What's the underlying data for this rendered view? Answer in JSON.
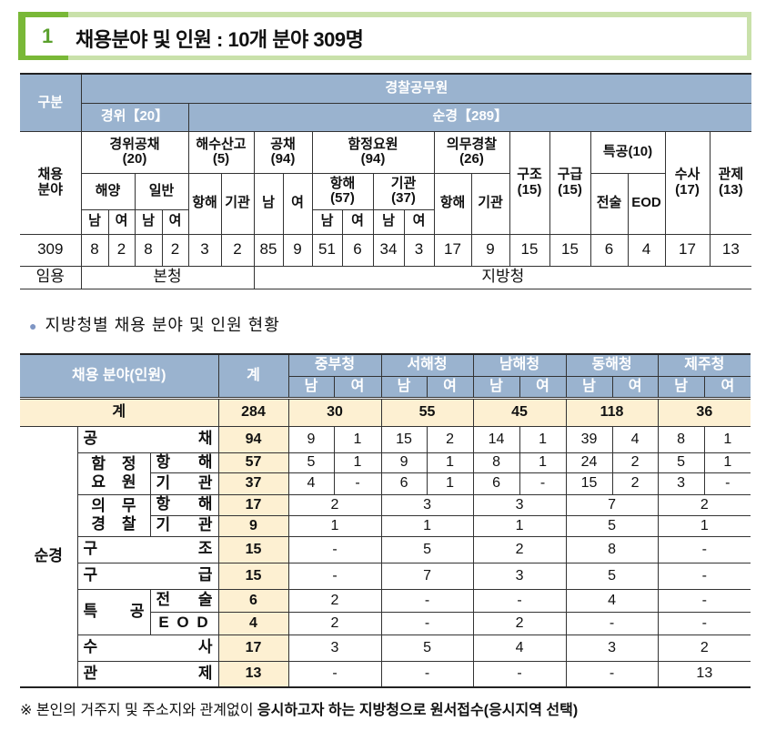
{
  "title": {
    "number": "1",
    "text": "채용분야 및 인원 : 10개 분야 309명"
  },
  "table1": {
    "gubun": "구분",
    "police": "경찰공무원",
    "gyeongwi": "경위【20】",
    "sungyeong": "순경【289】",
    "field_label": "채용\n분야",
    "groups": {
      "gyeongwi_gongchae": "경위공채\n(20)",
      "haesu": "해수산고\n(5)",
      "gongchae": "공채\n(94)",
      "hamjeong": "함정요원\n(94)",
      "uimu": "의무경찰\n(26)",
      "gujo": "구조\n(15)",
      "gugeup": "구급\n(15)",
      "teukgong": "특공(10)",
      "susa": "수사\n(17)",
      "gwanje": "관제\n(13)"
    },
    "sub": {
      "haeyang": "해양",
      "ilban": "일반",
      "hanghae": "항해",
      "gigwan": "기관",
      "nam": "남",
      "yeo": "여",
      "hanghae57": "항해\n(57)",
      "gigwan37": "기관\n(37)",
      "jeonsul": "전술",
      "eod": "EOD"
    },
    "total": "309",
    "values": [
      "8",
      "2",
      "8",
      "2",
      "3",
      "2",
      "85",
      "9",
      "51",
      "6",
      "34",
      "3",
      "17",
      "9",
      "15",
      "15",
      "6",
      "4",
      "17",
      "13"
    ],
    "appoint_label": "임용",
    "appoint_hq": "본청",
    "appoint_regional": "지방청"
  },
  "subtitle": "지방청별 채용 분야 및 인원 현황",
  "table2": {
    "field": "채용 분야(인원)",
    "total": "계",
    "regions": [
      "중부청",
      "서해청",
      "남해청",
      "동해청",
      "제주청"
    ],
    "male": "남",
    "female": "여",
    "total_row": {
      "label": "계",
      "total": "284",
      "regions": [
        "30",
        "55",
        "45",
        "118",
        "36"
      ]
    },
    "group": "순경",
    "labels": {
      "gongchae": [
        "공",
        "채"
      ],
      "hamjeong": [
        "함",
        "정",
        "요",
        "원"
      ],
      "uimu": [
        "의",
        "무",
        "경",
        "찰"
      ],
      "hanghae": [
        "항",
        "해"
      ],
      "gigwan": [
        "기",
        "관"
      ],
      "gujo": [
        "구",
        "조"
      ],
      "gugeup": [
        "구",
        "급"
      ],
      "teukgong": [
        "특",
        "공"
      ],
      "jeonsul": [
        "전",
        "술"
      ],
      "eod": "E O D",
      "susa": [
        "수",
        "사"
      ],
      "gwanje": [
        "관",
        "제"
      ]
    },
    "rows": [
      {
        "total": "94",
        "split": true,
        "values": [
          "9",
          "1",
          "15",
          "2",
          "14",
          "1",
          "39",
          "4",
          "8",
          "1"
        ]
      },
      {
        "total": "57",
        "split": true,
        "values": [
          "5",
          "1",
          "9",
          "1",
          "8",
          "1",
          "24",
          "2",
          "5",
          "1"
        ]
      },
      {
        "total": "37",
        "split": true,
        "values": [
          "4",
          "-",
          "6",
          "1",
          "6",
          "-",
          "15",
          "2",
          "3",
          "-"
        ]
      },
      {
        "total": "17",
        "split": false,
        "values": [
          "2",
          "3",
          "3",
          "7",
          "2"
        ]
      },
      {
        "total": "9",
        "split": false,
        "values": [
          "1",
          "1",
          "1",
          "5",
          "1"
        ]
      },
      {
        "total": "15",
        "split": false,
        "values": [
          "-",
          "5",
          "2",
          "8",
          "-"
        ]
      },
      {
        "total": "15",
        "split": false,
        "values": [
          "-",
          "7",
          "3",
          "5",
          "-"
        ]
      },
      {
        "total": "6",
        "split": false,
        "values": [
          "2",
          "-",
          "-",
          "4",
          "-"
        ]
      },
      {
        "total": "4",
        "split": false,
        "values": [
          "2",
          "-",
          "2",
          "-",
          "-"
        ]
      },
      {
        "total": "17",
        "split": false,
        "values": [
          "3",
          "5",
          "4",
          "3",
          "2"
        ]
      },
      {
        "total": "13",
        "split": false,
        "values": [
          "-",
          "-",
          "-",
          "-",
          "13"
        ]
      }
    ]
  },
  "footnote": {
    "normal": "※ 본인의 거주지 및 주소지와 관계없이 ",
    "bold": "응시하고자 하는 지방청으로 원서접수(응시지역 선택)"
  },
  "colors": {
    "header": "#9ab3cf",
    "total_bg": "#fdf0d2",
    "title_green": "#79b837",
    "title_border": "#c9e1aa"
  }
}
